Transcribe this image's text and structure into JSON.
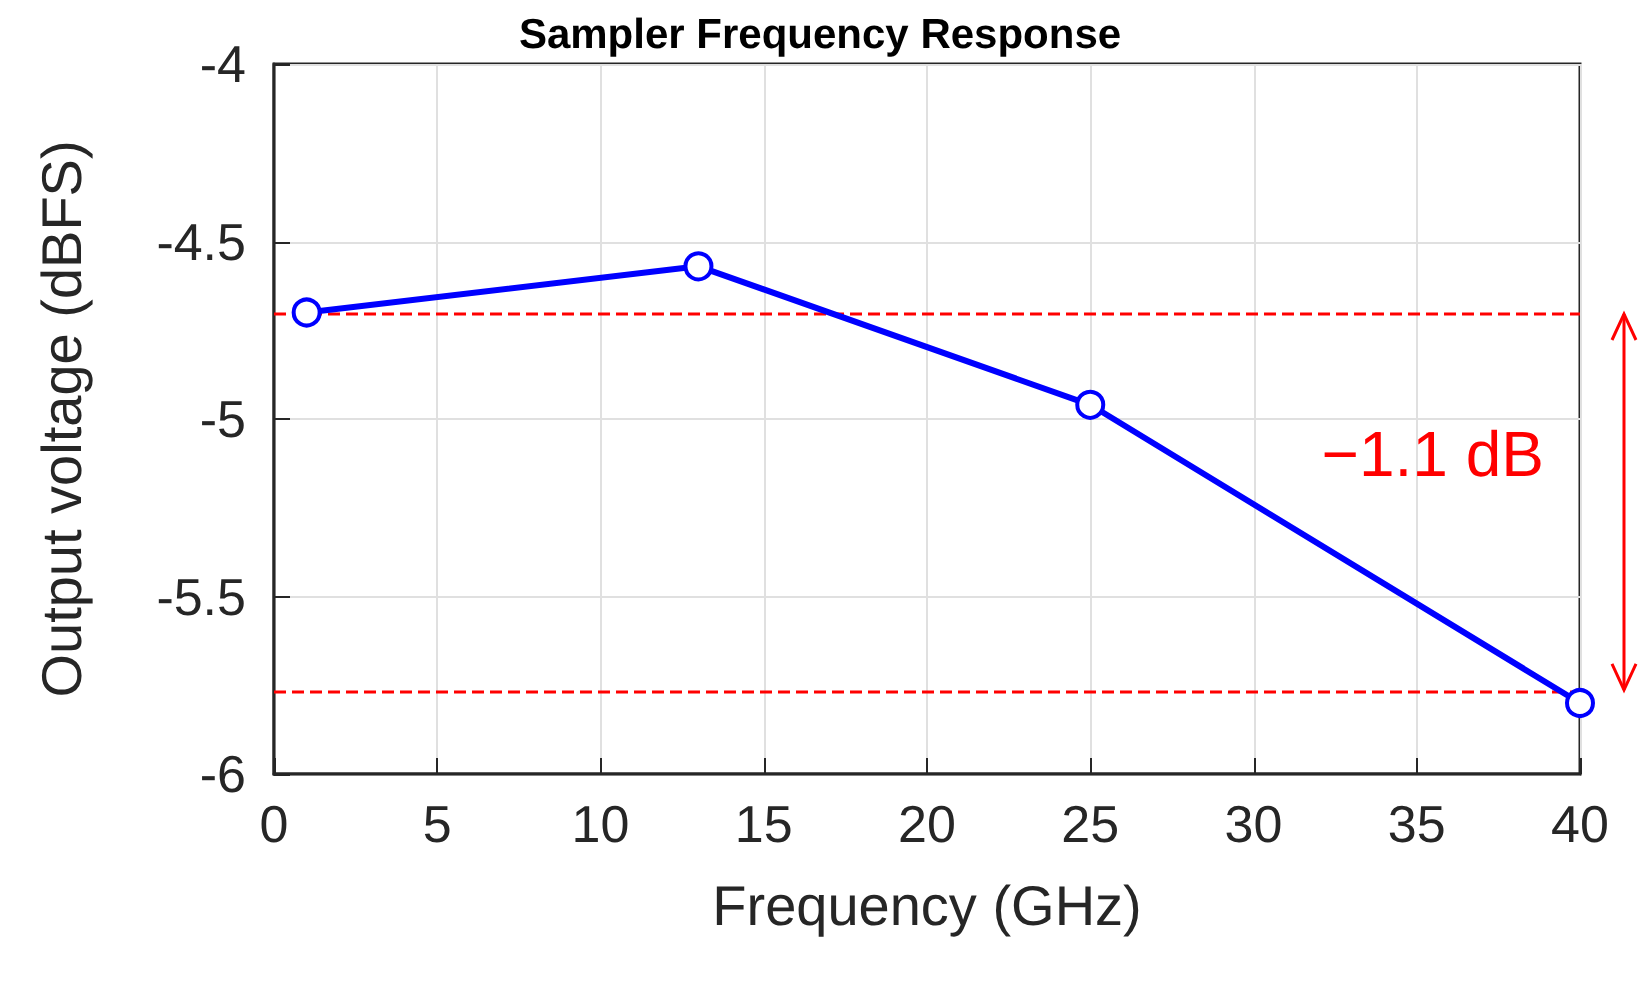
{
  "chart_data": {
    "type": "line",
    "title": "Sampler Frequency Response",
    "xlabel": "Frequency (GHz)",
    "ylabel": "Output voltage (dBFS)",
    "x": [
      1,
      13,
      25,
      40
    ],
    "series": [
      {
        "color": "#0000ff",
        "values": [
          -4.7,
          -4.57,
          -4.96,
          -5.8
        ]
      }
    ],
    "xlim": [
      0,
      40
    ],
    "xticks": [
      0,
      5,
      10,
      15,
      20,
      25,
      30,
      35,
      40
    ],
    "ylim": [
      -6,
      -4
    ],
    "yticks": [
      -6,
      -5.5,
      -5,
      -4.5,
      -4
    ],
    "ref_lines": [
      {
        "axis": "y",
        "value": -4.7,
        "color": "#ff0000",
        "line_style": "dashed"
      },
      {
        "axis": "y",
        "value": -5.77,
        "color": "#ff0000",
        "line_style": "dashed"
      }
    ],
    "annotations": [
      "−1.1 dB"
    ],
    "grid": true,
    "marker": "circle",
    "line_style": "solid"
  }
}
